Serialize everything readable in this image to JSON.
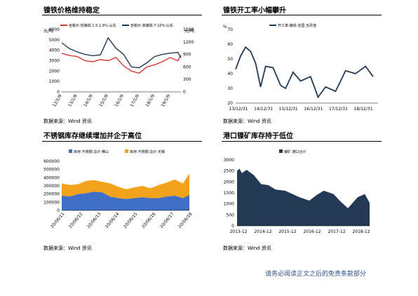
{
  "page": {
    "disclaimer": "请务必阅读正文之后的免责条款部分"
  },
  "panels": [
    {
      "title": "镍铁价格维持稳定",
      "source": "数据来源：Wind 资讯"
    },
    {
      "title": "镍铁开工率小幅攀升",
      "source": "数据来源：Wind 资讯"
    },
    {
      "title": "不锈钢库存继续增加并企于高位",
      "source": "数据来源：Wind 资讯"
    },
    {
      "title": "港口镍矿库存持于低位",
      "source": "数据来源：Wind 资讯"
    }
  ],
  "colors": {
    "red": "#d23a3a",
    "navy": "#233a55",
    "blue": "#3f6fc6",
    "orange": "#f2a21b",
    "area": "#233a55"
  },
  "chart_data": [
    {
      "type": "line",
      "xlabel": "",
      "ylabel_left": "元/吨",
      "ylabel_right": "元/吨",
      "x_ticks": [
        "12/1/9",
        "13/1/9",
        "14/1/9",
        "15/1/9",
        "16/1/9",
        "17/1/9",
        "18/1/9",
        "19/1/9"
      ],
      "x": [
        0,
        0.5,
        1,
        1.5,
        2,
        2.5,
        3,
        3.5,
        4,
        4.5,
        5,
        5.5,
        6,
        6.5,
        7,
        7.5,
        7.7
      ],
      "ylim_left": [
        0,
        6000
      ],
      "ylim_right": [
        0,
        1500
      ],
      "y_ticks_left": [
        0,
        1000,
        2000,
        3000,
        4000,
        5000,
        6000
      ],
      "y_ticks_right": [
        0,
        300,
        600,
        900,
        1200,
        1500
      ],
      "series": [
        {
          "name": "含税价:低镍铁:1.5-1.8%:山东",
          "axis": "left",
          "color": "red",
          "values": [
            3700,
            3500,
            3400,
            3000,
            2900,
            3100,
            3000,
            3300,
            2500,
            2000,
            1800,
            2400,
            2600,
            2900,
            3300,
            3000,
            3500
          ]
        },
        {
          "name": "含税价:高镍铁:7-10%:山东",
          "axis": "right",
          "color": "navy",
          "values": [
            1180,
            1040,
            960,
            900,
            870,
            890,
            1300,
            1050,
            900,
            600,
            580,
            700,
            850,
            900,
            930,
            950,
            820
          ]
        }
      ]
    },
    {
      "type": "line",
      "ylabel": "%",
      "x_ticks": [
        "13/12/31",
        "14/12/31",
        "15/12/31",
        "16/12/31",
        "17/12/31",
        "18/12/31"
      ],
      "x": [
        0,
        0.2,
        0.4,
        0.6,
        0.8,
        1.0,
        1.2,
        1.5,
        1.8,
        2.0,
        2.3,
        2.6,
        3.0,
        3.3,
        3.6,
        4.0,
        4.4,
        4.8,
        5.2,
        5.5
      ],
      "ylim": [
        20,
        70
      ],
      "y_ticks": [
        20,
        30,
        40,
        50,
        60,
        70
      ],
      "series": [
        {
          "name": "开工率:镍铁:全国:当月值",
          "color": "navy",
          "values": [
            43,
            52,
            58,
            55,
            47,
            31,
            45,
            44,
            32,
            30,
            41,
            35,
            38,
            24,
            31,
            28,
            42,
            40,
            45,
            38
          ]
        }
      ]
    },
    {
      "type": "area",
      "x_ticks": [
        "20/06/11",
        "20/06/12",
        "20/06/13",
        "20/06/14",
        "20/06/15",
        "20/06/16",
        "20/06/17",
        "20/06/18"
      ],
      "ylim": [
        0,
        600000
      ],
      "y_ticks": [
        0,
        100000,
        200000,
        300000,
        400000,
        500000,
        600000
      ],
      "stacked": true,
      "x": [
        0,
        0.5,
        1,
        1.5,
        2,
        2.5,
        3,
        3.5,
        4,
        4.5,
        5,
        5.5,
        6,
        6.5,
        7,
        7.5,
        7.9
      ],
      "series": [
        {
          "name": "库存:不锈钢:总计:佛山",
          "color": "blue",
          "values": [
            180000,
            170000,
            200000,
            210000,
            230000,
            220000,
            170000,
            150000,
            140000,
            150000,
            160000,
            150000,
            150000,
            170000,
            180000,
            150000,
            190000
          ]
        },
        {
          "name": "库存:不锈钢:总计:无锡",
          "color": "orange",
          "values": [
            150000,
            140000,
            120000,
            150000,
            140000,
            130000,
            160000,
            140000,
            120000,
            130000,
            140000,
            120000,
            160000,
            170000,
            200000,
            180000,
            260000
          ]
        }
      ]
    },
    {
      "type": "area",
      "x_ticks": [
        "2013-12",
        "2014-12",
        "2015-12",
        "2016-12",
        "2017-12",
        "2018-12"
      ],
      "ylim": [
        0,
        3000
      ],
      "y_ticks": [
        0,
        500,
        1000,
        1500,
        2000,
        2500,
        3000
      ],
      "x": [
        0,
        0.1,
        0.2,
        0.4,
        0.7,
        1.0,
        1.3,
        1.6,
        2.0,
        2.3,
        2.6,
        3.0,
        3.3,
        3.6,
        4.0,
        4.3,
        4.6,
        5.0,
        5.3,
        5.5
      ],
      "series": [
        {
          "name": "镍矿:港口合计",
          "color": "area",
          "values": [
            2500,
            2600,
            2400,
            2550,
            2300,
            1900,
            1850,
            1650,
            1600,
            1450,
            1300,
            1150,
            1400,
            1600,
            1450,
            1100,
            800,
            1300,
            1450,
            1050
          ]
        }
      ]
    }
  ]
}
